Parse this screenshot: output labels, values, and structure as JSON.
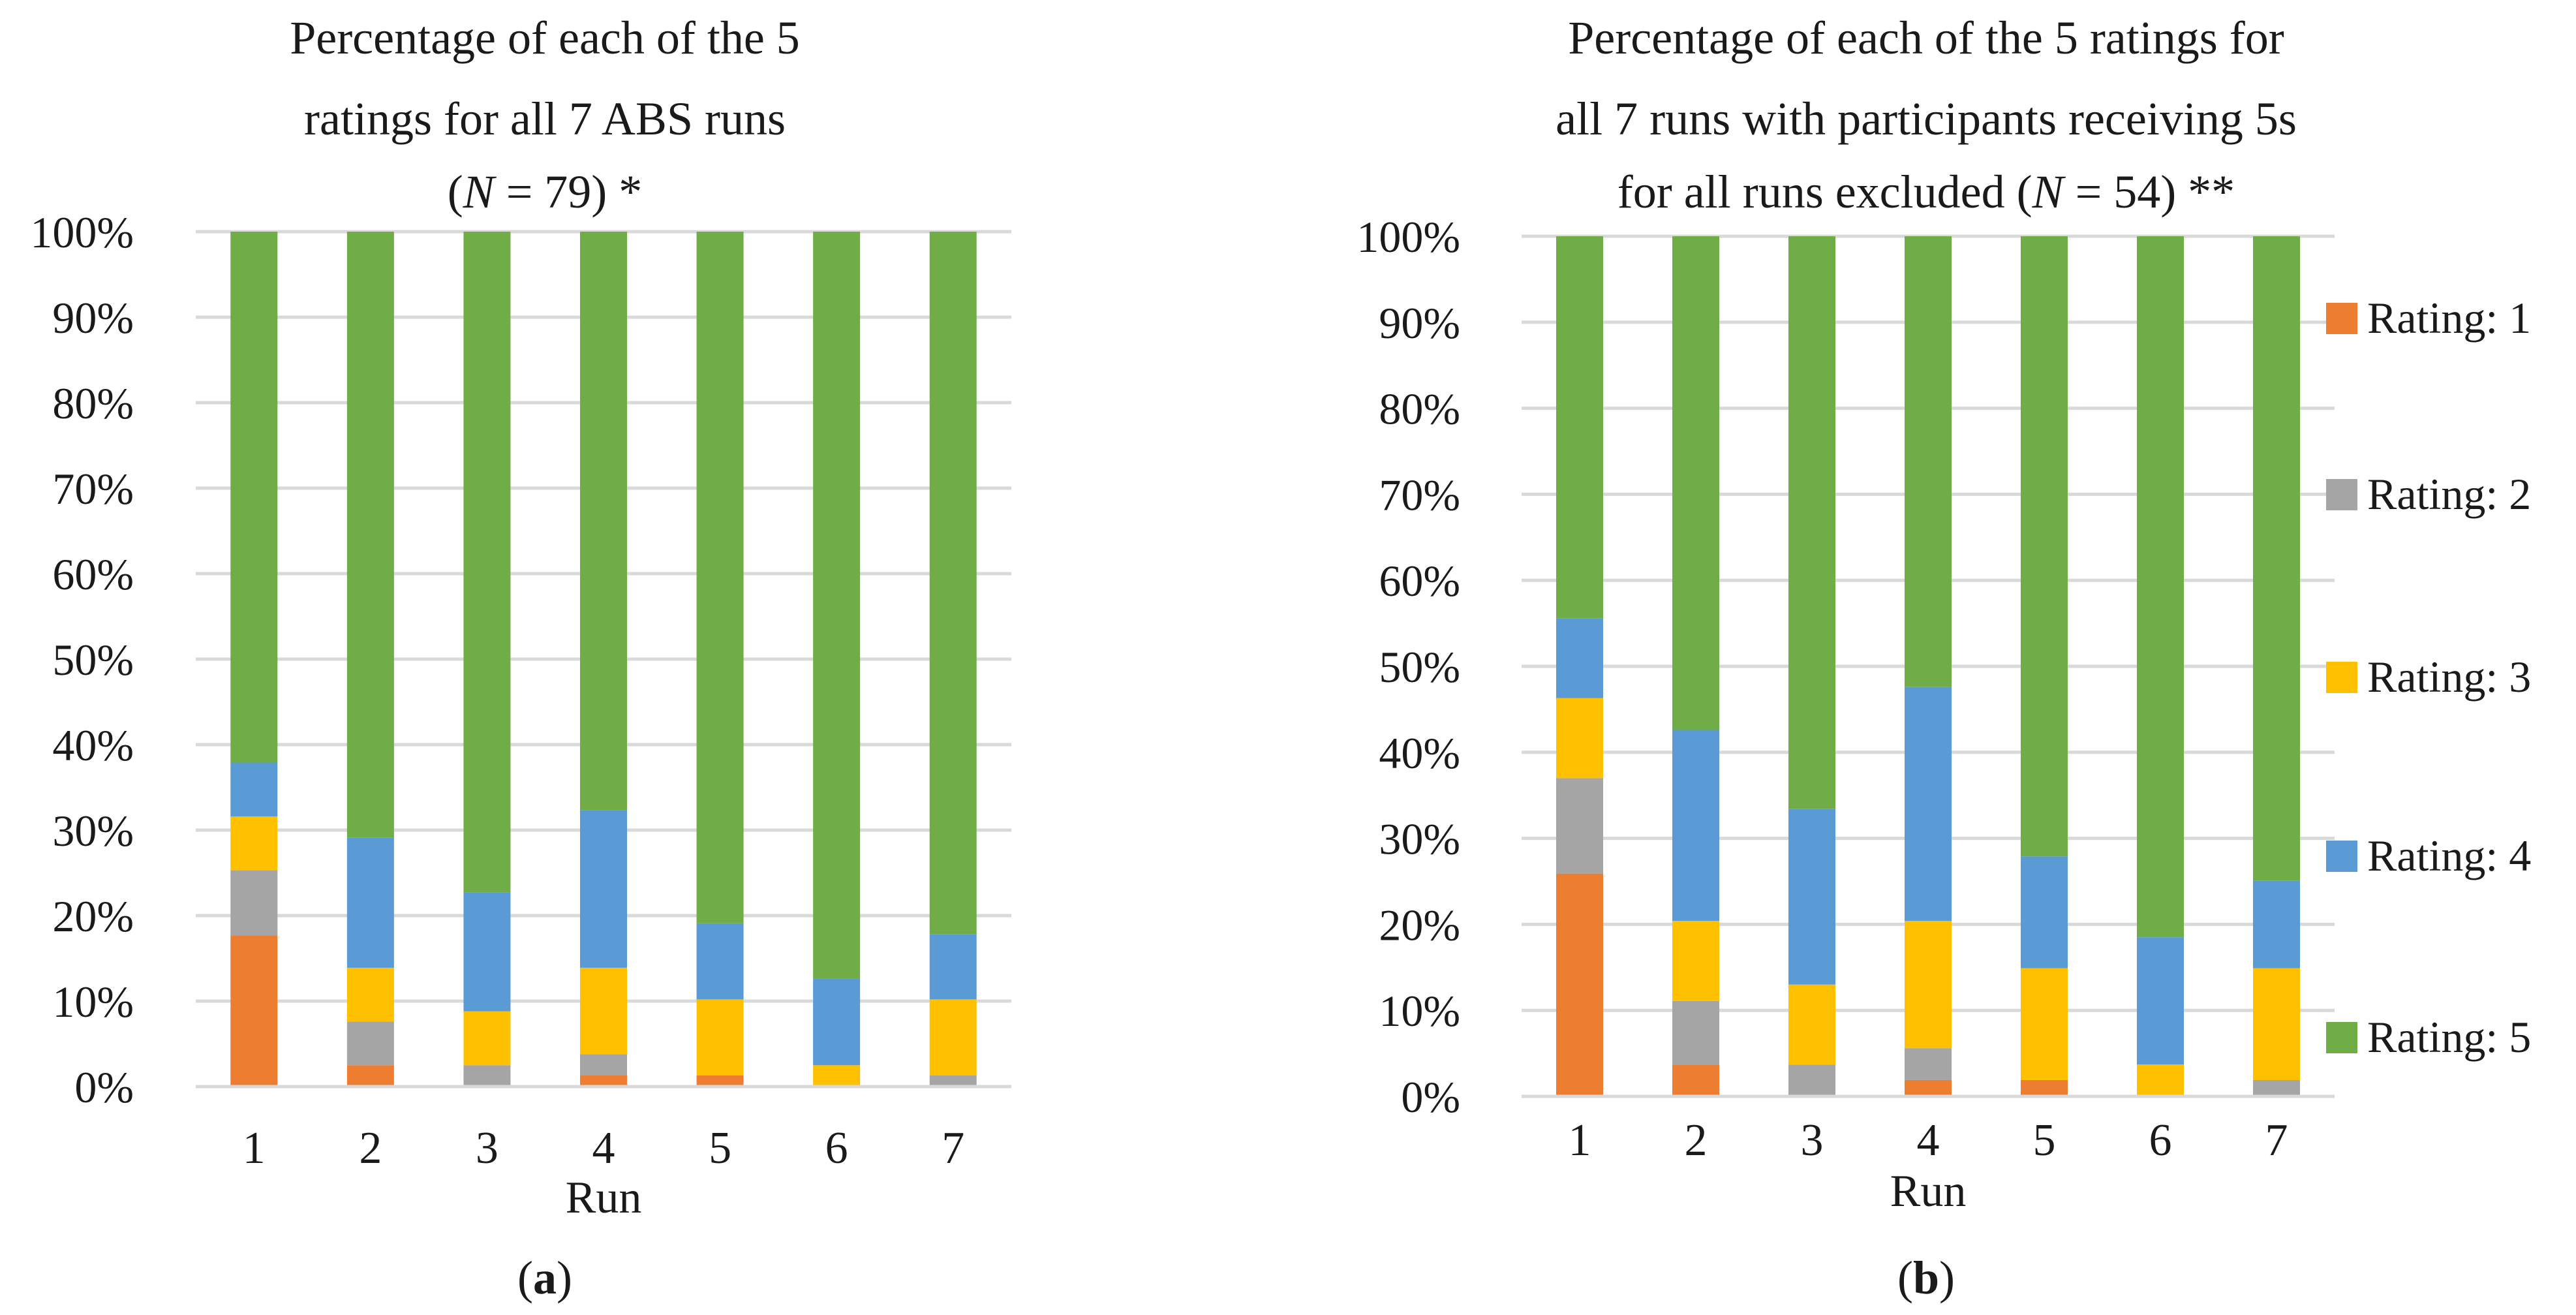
{
  "figure": {
    "panel_a_label": "a",
    "panel_b_label": "b",
    "paren_open": "(",
    "paren_close": ")"
  },
  "chart_data": [
    {
      "type": "bar",
      "stacked": true,
      "title": "Percentage of each of the 5 ratings for all 7 ABS runs (N = 79) *",
      "title_lines": [
        "Percentage of each of the 5",
        "ratings for all 7 ABS runs"
      ],
      "title_n_prefix": "(",
      "title_n_var": "N",
      "title_n_suffix": " = 79) *",
      "xlabel": "Run",
      "ylabel": "",
      "ylim": [
        0,
        100
      ],
      "y_ticks": [
        "0%",
        "10%",
        "20%",
        "30%",
        "40%",
        "50%",
        "60%",
        "70%",
        "80%",
        "90%",
        "100%"
      ],
      "categories": [
        "1",
        "2",
        "3",
        "4",
        "5",
        "6",
        "7"
      ],
      "series": [
        {
          "name": "Rating: 1",
          "color": "#ED7D31",
          "values": [
            17.7,
            2.5,
            0,
            1.3,
            1.3,
            0,
            0
          ]
        },
        {
          "name": "Rating: 2",
          "color": "#A5A5A5",
          "values": [
            7.6,
            5.1,
            2.5,
            2.5,
            0,
            0,
            1.3
          ]
        },
        {
          "name": "Rating: 3",
          "color": "#FFC000",
          "values": [
            6.3,
            6.3,
            6.3,
            10.1,
            8.9,
            2.5,
            8.9
          ]
        },
        {
          "name": "Rating: 4",
          "color": "#5B9BD5",
          "values": [
            6.3,
            15.2,
            13.9,
            18.4,
            8.9,
            10.1,
            7.6
          ]
        },
        {
          "name": "Rating: 5",
          "color": "#70AD47",
          "values": [
            62.1,
            70.9,
            77.3,
            67.7,
            80.9,
            87.4,
            82.2
          ]
        }
      ]
    },
    {
      "type": "bar",
      "stacked": true,
      "title": "Percentage of each of the 5 ratings for all 7 runs with participants receiving 5s for all runs excluded (N = 54) **",
      "title_lines": [
        "Percentage of each of the 5 ratings for",
        "all 7 runs with participants receiving 5s"
      ],
      "title_n_prefix": "for all runs excluded (",
      "title_n_var": "N",
      "title_n_suffix": " = 54) **",
      "xlabel": "Run",
      "ylabel": "",
      "ylim": [
        0,
        100
      ],
      "y_ticks": [
        "0%",
        "10%",
        "20%",
        "30%",
        "40%",
        "50%",
        "60%",
        "70%",
        "80%",
        "90%",
        "100%"
      ],
      "categories": [
        "1",
        "2",
        "3",
        "4",
        "5",
        "6",
        "7"
      ],
      "legend": [
        "Rating: 1",
        "Rating: 2",
        "Rating: 3",
        "Rating: 4",
        "Rating: 5"
      ],
      "series": [
        {
          "name": "Rating: 1",
          "color": "#ED7D31",
          "values": [
            25.9,
            3.7,
            0,
            1.9,
            1.9,
            0,
            0
          ]
        },
        {
          "name": "Rating: 2",
          "color": "#A5A5A5",
          "values": [
            11.1,
            7.4,
            3.7,
            3.7,
            0,
            0,
            1.9
          ]
        },
        {
          "name": "Rating: 3",
          "color": "#FFC000",
          "values": [
            9.3,
            9.3,
            9.3,
            14.8,
            13.0,
            3.7,
            13.0
          ]
        },
        {
          "name": "Rating: 4",
          "color": "#5B9BD5",
          "values": [
            9.3,
            22.2,
            20.4,
            27.2,
            13.0,
            14.8,
            10.2
          ]
        },
        {
          "name": "Rating: 5",
          "color": "#70AD47",
          "values": [
            44.4,
            57.4,
            66.6,
            52.4,
            72.1,
            81.5,
            74.9
          ]
        }
      ]
    }
  ]
}
